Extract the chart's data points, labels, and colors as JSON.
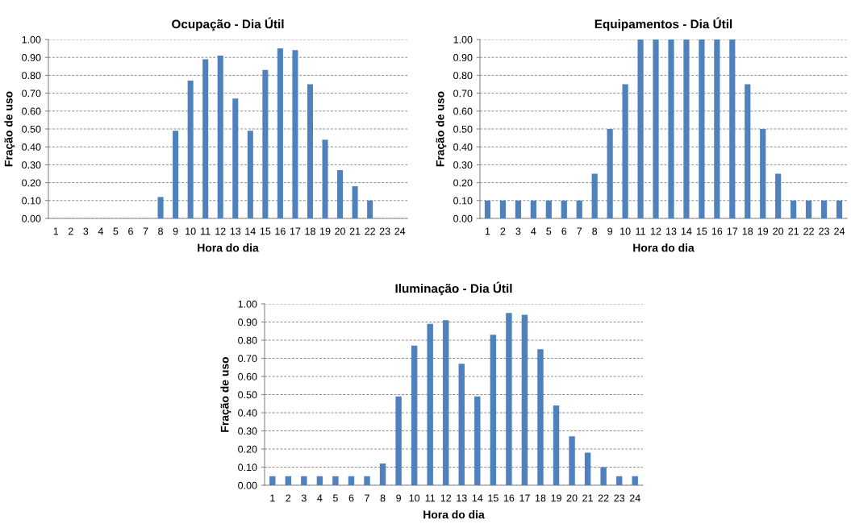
{
  "chart_data": [
    {
      "type": "bar",
      "title": "Ocupação - Dia Útil",
      "xlabel": "Hora do dia",
      "ylabel": "Fração de uso",
      "color": "#4f81bd",
      "grid": "y",
      "categories": [
        "1",
        "2",
        "3",
        "4",
        "5",
        "6",
        "7",
        "8",
        "9",
        "10",
        "11",
        "12",
        "13",
        "14",
        "15",
        "16",
        "17",
        "18",
        "19",
        "20",
        "21",
        "22",
        "23",
        "24"
      ],
      "values": [
        0,
        0,
        0,
        0,
        0,
        0,
        0,
        0.12,
        0.49,
        0.77,
        0.89,
        0.91,
        0.67,
        0.49,
        0.83,
        0.95,
        0.94,
        0.75,
        0.44,
        0.27,
        0.18,
        0.1,
        0,
        0
      ],
      "ylim": [
        0,
        1
      ],
      "yticks": [
        {
          "value": 0,
          "label": "0.00"
        },
        {
          "value": 0.1,
          "label": "0.10"
        },
        {
          "value": 0.2,
          "label": "0.20"
        },
        {
          "value": 0.3,
          "label": "0.30"
        },
        {
          "value": 0.4,
          "label": "0.40"
        },
        {
          "value": 0.5,
          "label": "0.50"
        },
        {
          "value": 0.6,
          "label": "0.60"
        },
        {
          "value": 0.7,
          "label": "0.70"
        },
        {
          "value": 0.8,
          "label": "0.80"
        },
        {
          "value": 0.9,
          "label": "0.90"
        },
        {
          "value": 1,
          "label": "1.00"
        }
      ]
    },
    {
      "type": "bar",
      "title": "Equipamentos - Dia Útil",
      "xlabel": "Hora do dia",
      "ylabel": "Fração de uso",
      "color": "#4f81bd",
      "grid": "y",
      "categories": [
        "1",
        "2",
        "3",
        "4",
        "5",
        "6",
        "7",
        "8",
        "9",
        "10",
        "11",
        "12",
        "13",
        "14",
        "15",
        "16",
        "17",
        "18",
        "19",
        "20",
        "21",
        "22",
        "23",
        "24"
      ],
      "values": [
        0.1,
        0.1,
        0.1,
        0.1,
        0.1,
        0.1,
        0.1,
        0.25,
        0.5,
        0.75,
        1,
        1,
        1,
        1,
        1,
        1,
        1,
        0.75,
        0.5,
        0.25,
        0.1,
        0.1,
        0.1,
        0.1
      ],
      "ylim": [
        0,
        1
      ],
      "yticks": [
        {
          "value": 0,
          "label": "0.00"
        },
        {
          "value": 0.1,
          "label": "0.10"
        },
        {
          "value": 0.2,
          "label": "0.20"
        },
        {
          "value": 0.3,
          "label": "0.30"
        },
        {
          "value": 0.4,
          "label": "0.40"
        },
        {
          "value": 0.5,
          "label": "0.50"
        },
        {
          "value": 0.6,
          "label": "0.60"
        },
        {
          "value": 0.7,
          "label": "0.70"
        },
        {
          "value": 0.8,
          "label": "0.80"
        },
        {
          "value": 0.9,
          "label": "0.90"
        },
        {
          "value": 1,
          "label": "1.00"
        }
      ]
    },
    {
      "type": "bar",
      "title": "Iluminação - Dia Útil",
      "xlabel": "Hora do dia",
      "ylabel": "Fração de uso",
      "color": "#4f81bd",
      "grid": "y",
      "categories": [
        "1",
        "2",
        "3",
        "4",
        "5",
        "6",
        "7",
        "8",
        "9",
        "10",
        "11",
        "12",
        "13",
        "14",
        "15",
        "16",
        "17",
        "18",
        "19",
        "20",
        "21",
        "22",
        "23",
        "24"
      ],
      "values": [
        0.05,
        0.05,
        0.05,
        0.05,
        0.05,
        0.05,
        0.05,
        0.12,
        0.49,
        0.77,
        0.89,
        0.91,
        0.67,
        0.49,
        0.83,
        0.95,
        0.94,
        0.75,
        0.44,
        0.27,
        0.18,
        0.1,
        0.05,
        0.05
      ],
      "ylim": [
        0,
        1
      ],
      "yticks": [
        {
          "value": 0,
          "label": "0.00"
        },
        {
          "value": 0.1,
          "label": "0.10"
        },
        {
          "value": 0.2,
          "label": "0.20"
        },
        {
          "value": 0.3,
          "label": "0.30"
        },
        {
          "value": 0.4,
          "label": "0.40"
        },
        {
          "value": 0.5,
          "label": "0.50"
        },
        {
          "value": 0.6,
          "label": "0.60"
        },
        {
          "value": 0.7,
          "label": "0.70"
        },
        {
          "value": 0.8,
          "label": "0.80"
        },
        {
          "value": 0.9,
          "label": "0.90"
        },
        {
          "value": 1,
          "label": "1.00"
        }
      ]
    }
  ]
}
